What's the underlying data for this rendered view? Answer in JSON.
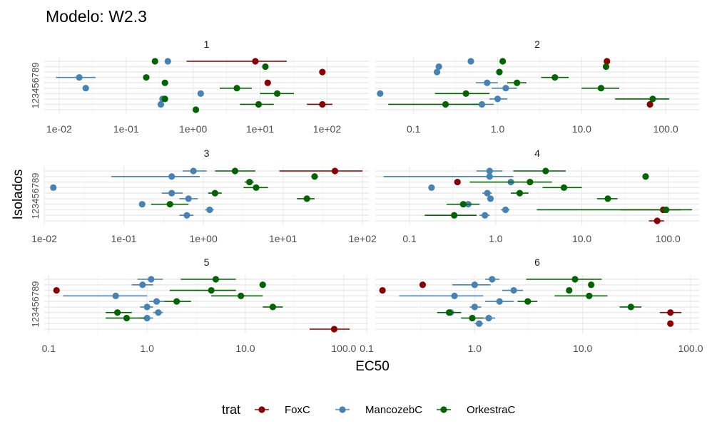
{
  "title": "Modelo: W2.3",
  "chart_data": {
    "type": "scatter",
    "title": "Modelo: W2.3",
    "xlabel": "EC50",
    "ylabel": "Isolados",
    "x_scale": "log10",
    "y_categories": [
      "1",
      "2",
      "3",
      "4",
      "5",
      "6",
      "7",
      "8",
      "9"
    ],
    "y_tick_label": "123456789",
    "grid": true,
    "legend": {
      "title": "trat",
      "position": "bottom",
      "entries": [
        {
          "name": "FoxС",
          "color": "#8B0000"
        },
        {
          "name": "MancozebС",
          "color": "#4682B4"
        },
        {
          "name": "OrkestraС",
          "color": "#006400"
        }
      ]
    },
    "facets": [
      {
        "label": "1",
        "xlim": [
          0.006,
          420
        ],
        "xticks": [
          {
            "v": 0.01,
            "t": "1e-02"
          },
          {
            "v": 0.1,
            "t": "1e-01"
          },
          {
            "v": 1,
            "t": "1e+00"
          },
          {
            "v": 10,
            "t": "1e+01"
          },
          {
            "v": 100,
            "t": "1e+02"
          }
        ],
        "points": [
          {
            "trat": 0,
            "iso": 9,
            "x": 8.5,
            "lo": 0.8,
            "hi": 25
          },
          {
            "trat": 0,
            "iso": 7,
            "x": 85,
            "lo": 85,
            "hi": 85
          },
          {
            "trat": 0,
            "iso": 5,
            "x": 13,
            "lo": 13,
            "hi": 13
          },
          {
            "trat": 0,
            "iso": 1,
            "x": 85,
            "lo": 50,
            "hi": 120
          },
          {
            "trat": 1,
            "iso": 9,
            "x": 0.42,
            "lo": 0.42,
            "hi": 0.42
          },
          {
            "trat": 1,
            "iso": 6,
            "x": 0.02,
            "lo": 0.009,
            "hi": 0.035
          },
          {
            "trat": 1,
            "iso": 4,
            "x": 0.025,
            "lo": 0.025,
            "hi": 0.025
          },
          {
            "trat": 1,
            "iso": 3,
            "x": 1.3,
            "lo": 1.3,
            "hi": 1.3
          },
          {
            "trat": 1,
            "iso": 2,
            "x": 0.35,
            "lo": 0.35,
            "hi": 0.35
          },
          {
            "trat": 1,
            "iso": 1,
            "x": 0.33,
            "lo": 0.33,
            "hi": 0.33
          },
          {
            "trat": 2,
            "iso": 9,
            "x": 0.27,
            "lo": 0.27,
            "hi": 0.27
          },
          {
            "trat": 2,
            "iso": 8,
            "x": 12,
            "lo": 12,
            "hi": 12
          },
          {
            "trat": 2,
            "iso": 6,
            "x": 0.2,
            "lo": 0.2,
            "hi": 0.2
          },
          {
            "trat": 2,
            "iso": 5,
            "x": 0.38,
            "lo": 0.38,
            "hi": 0.38
          },
          {
            "trat": 2,
            "iso": 4,
            "x": 4.5,
            "lo": 2.5,
            "hi": 7.5
          },
          {
            "trat": 2,
            "iso": 3,
            "x": 18,
            "lo": 10,
            "hi": 32
          },
          {
            "trat": 2,
            "iso": 2,
            "x": 0.38,
            "lo": 0.38,
            "hi": 0.38
          },
          {
            "trat": 2,
            "iso": 1,
            "x": 9.5,
            "lo": 5,
            "hi": 16
          },
          {
            "trat": 2,
            "iso": 0,
            "x": 1.1,
            "lo": 1.1,
            "hi": 1.1
          }
        ]
      },
      {
        "label": "2",
        "xlim": [
          0.035,
          250
        ],
        "xticks": [
          {
            "v": 0.1,
            "t": "0.1"
          },
          {
            "v": 1,
            "t": "1.0"
          },
          {
            "v": 10,
            "t": "10.0"
          },
          {
            "v": 100,
            "t": "100.0"
          }
        ],
        "points": [
          {
            "trat": 0,
            "iso": 9,
            "x": 20,
            "lo": 20,
            "hi": 20
          },
          {
            "trat": 0,
            "iso": 1,
            "x": 65,
            "lo": 65,
            "hi": 65
          },
          {
            "trat": 1,
            "iso": 9,
            "x": 0.48,
            "lo": 0.48,
            "hi": 0.48
          },
          {
            "trat": 1,
            "iso": 8,
            "x": 0.2,
            "lo": 0.2,
            "hi": 0.2
          },
          {
            "trat": 1,
            "iso": 7,
            "x": 0.19,
            "lo": 0.19,
            "hi": 0.19
          },
          {
            "trat": 1,
            "iso": 5,
            "x": 0.75,
            "lo": 0.55,
            "hi": 1.0
          },
          {
            "trat": 1,
            "iso": 4,
            "x": 1.25,
            "lo": 0.85,
            "hi": 1.7
          },
          {
            "trat": 1,
            "iso": 3,
            "x": 0.04,
            "lo": 0.04,
            "hi": 0.04
          },
          {
            "trat": 1,
            "iso": 2,
            "x": 1.0,
            "lo": 0.8,
            "hi": 1.3
          },
          {
            "trat": 1,
            "iso": 1,
            "x": 0.65,
            "lo": 0.5,
            "hi": 0.9
          },
          {
            "trat": 2,
            "iso": 9,
            "x": 1.15,
            "lo": 1.15,
            "hi": 1.15
          },
          {
            "trat": 2,
            "iso": 8,
            "x": 19.5,
            "lo": 19.5,
            "hi": 19.5
          },
          {
            "trat": 2,
            "iso": 7,
            "x": 1.05,
            "lo": 1.05,
            "hi": 1.05
          },
          {
            "trat": 2,
            "iso": 6,
            "x": 4.8,
            "lo": 3.3,
            "hi": 7
          },
          {
            "trat": 2,
            "iso": 5,
            "x": 1.7,
            "lo": 1.3,
            "hi": 2.2
          },
          {
            "trat": 2,
            "iso": 4,
            "x": 17,
            "lo": 10,
            "hi": 28
          },
          {
            "trat": 2,
            "iso": 3,
            "x": 0.42,
            "lo": 0.18,
            "hi": 0.8
          },
          {
            "trat": 2,
            "iso": 2,
            "x": 70,
            "lo": 25,
            "hi": 110
          },
          {
            "trat": 2,
            "iso": 1,
            "x": 0.24,
            "lo": 0.05,
            "hi": 0.6
          }
        ]
      },
      {
        "label": "3",
        "xlim": [
          0.01,
          120
        ],
        "xticks": [
          {
            "v": 0.01,
            "t": "1e-02"
          },
          {
            "v": 0.1,
            "t": "1e-01"
          },
          {
            "v": 1,
            "t": "1e+00"
          },
          {
            "v": 10,
            "t": "1e+01"
          },
          {
            "v": 100,
            "t": "1e+02"
          }
        ],
        "points": [
          {
            "trat": 0,
            "iso": 9,
            "x": 45,
            "lo": 9,
            "hi": 100
          },
          {
            "trat": 1,
            "iso": 9,
            "x": 0.75,
            "lo": 0.55,
            "hi": 1.1
          },
          {
            "trat": 1,
            "iso": 8,
            "x": 0.4,
            "lo": 0.07,
            "hi": 0.9
          },
          {
            "trat": 1,
            "iso": 6,
            "x": 0.013,
            "lo": 0.013,
            "hi": 0.013
          },
          {
            "trat": 1,
            "iso": 5,
            "x": 0.4,
            "lo": 0.3,
            "hi": 0.55
          },
          {
            "trat": 1,
            "iso": 4,
            "x": 0.65,
            "lo": 0.5,
            "hi": 0.85
          },
          {
            "trat": 1,
            "iso": 3,
            "x": 0.17,
            "lo": 0.17,
            "hi": 0.17
          },
          {
            "trat": 1,
            "iso": 2,
            "x": 1.2,
            "lo": 1.05,
            "hi": 1.35
          },
          {
            "trat": 1,
            "iso": 1,
            "x": 0.62,
            "lo": 0.5,
            "hi": 0.75
          },
          {
            "trat": 2,
            "iso": 9,
            "x": 2.5,
            "lo": 1.4,
            "hi": 4.5
          },
          {
            "trat": 2,
            "iso": 8,
            "x": 25,
            "lo": 25,
            "hi": 25
          },
          {
            "trat": 2,
            "iso": 7,
            "x": 3.8,
            "lo": 3.3,
            "hi": 4.3
          },
          {
            "trat": 2,
            "iso": 6,
            "x": 4.6,
            "lo": 3.2,
            "hi": 6.5
          },
          {
            "trat": 2,
            "iso": 5,
            "x": 1.4,
            "lo": 1.15,
            "hi": 1.7
          },
          {
            "trat": 2,
            "iso": 4,
            "x": 20,
            "lo": 15,
            "hi": 25
          },
          {
            "trat": 2,
            "iso": 3,
            "x": 0.38,
            "lo": 0.22,
            "hi": 0.65
          }
        ]
      },
      {
        "label": "4",
        "xlim": [
          0.04,
          230
        ],
        "xticks": [
          {
            "v": 0.1,
            "t": "0.1"
          },
          {
            "v": 1,
            "t": "1.0"
          },
          {
            "v": 10,
            "t": "10.0"
          },
          {
            "v": 100,
            "t": "100.0"
          }
        ],
        "points": [
          {
            "trat": 0,
            "iso": 7,
            "x": 0.36,
            "lo": 0.36,
            "hi": 0.36
          },
          {
            "trat": 0,
            "iso": 2,
            "x": 88,
            "lo": 28,
            "hi": 140
          },
          {
            "trat": 0,
            "iso": 0,
            "x": 75,
            "lo": 60,
            "hi": 90
          },
          {
            "trat": 1,
            "iso": 9,
            "x": 0.85,
            "lo": 0.6,
            "hi": 1.2
          },
          {
            "trat": 1,
            "iso": 8,
            "x": 0.85,
            "lo": 0.05,
            "hi": 1.6
          },
          {
            "trat": 1,
            "iso": 7,
            "x": 1.5,
            "lo": 1.5,
            "hi": 1.5
          },
          {
            "trat": 1,
            "iso": 6,
            "x": 0.18,
            "lo": 0.18,
            "hi": 0.18
          },
          {
            "trat": 1,
            "iso": 5,
            "x": 0.8,
            "lo": 0.7,
            "hi": 0.9
          },
          {
            "trat": 1,
            "iso": 4,
            "x": 0.87,
            "lo": 0.8,
            "hi": 0.95
          },
          {
            "trat": 1,
            "iso": 3,
            "x": 0.48,
            "lo": 0.35,
            "hi": 0.65
          },
          {
            "trat": 1,
            "iso": 2,
            "x": 1.3,
            "lo": 1.15,
            "hi": 1.45
          },
          {
            "trat": 1,
            "iso": 1,
            "x": 0.75,
            "lo": 0.65,
            "hi": 0.85
          },
          {
            "trat": 2,
            "iso": 9,
            "x": 3.8,
            "lo": 1.6,
            "hi": 6.5
          },
          {
            "trat": 2,
            "iso": 8,
            "x": 55,
            "lo": 55,
            "hi": 55
          },
          {
            "trat": 2,
            "iso": 7,
            "x": 2.5,
            "lo": 0.5,
            "hi": 4.5
          },
          {
            "trat": 2,
            "iso": 6,
            "x": 6.2,
            "lo": 3.5,
            "hi": 10
          },
          {
            "trat": 2,
            "iso": 5,
            "x": 1.9,
            "lo": 1.5,
            "hi": 2.4
          },
          {
            "trat": 2,
            "iso": 4,
            "x": 20,
            "lo": 15,
            "hi": 26
          },
          {
            "trat": 2,
            "iso": 3,
            "x": 0.42,
            "lo": 0.27,
            "hi": 0.65
          },
          {
            "trat": 2,
            "iso": 2,
            "x": 95,
            "lo": 3,
            "hi": 190
          },
          {
            "trat": 2,
            "iso": 1,
            "x": 0.33,
            "lo": 0.15,
            "hi": 0.6
          }
        ]
      },
      {
        "label": "5",
        "xlim": [
          0.09,
          180
        ],
        "xticks": [
          {
            "v": 0.1,
            "t": "0.1"
          },
          {
            "v": 1,
            "t": "1.0"
          },
          {
            "v": 10,
            "t": "10.0"
          },
          {
            "v": 100,
            "t": "100.0"
          }
        ],
        "points": [
          {
            "trat": 0,
            "iso": 7,
            "x": 0.12,
            "lo": 0.12,
            "hi": 0.12
          },
          {
            "trat": 0,
            "iso": 0,
            "x": 80,
            "lo": 45,
            "hi": 115
          },
          {
            "trat": 1,
            "iso": 9,
            "x": 1.1,
            "lo": 0.8,
            "hi": 1.45
          },
          {
            "trat": 1,
            "iso": 8,
            "x": 0.9,
            "lo": 0.7,
            "hi": 1.15
          },
          {
            "trat": 1,
            "iso": 6,
            "x": 0.48,
            "lo": 0.14,
            "hi": 1.0
          },
          {
            "trat": 1,
            "iso": 5,
            "x": 1.25,
            "lo": 1.05,
            "hi": 1.5
          },
          {
            "trat": 1,
            "iso": 4,
            "x": 1.0,
            "lo": 0.85,
            "hi": 1.15
          },
          {
            "trat": 1,
            "iso": 3,
            "x": 1.3,
            "lo": 1.15,
            "hi": 1.45
          },
          {
            "trat": 1,
            "iso": 2,
            "x": 1.0,
            "lo": 0.85,
            "hi": 1.15
          },
          {
            "trat": 2,
            "iso": 9,
            "x": 5,
            "lo": 2.2,
            "hi": 8
          },
          {
            "trat": 2,
            "iso": 8,
            "x": 15,
            "lo": 15,
            "hi": 15
          },
          {
            "trat": 2,
            "iso": 7,
            "x": 4.5,
            "lo": 1.7,
            "hi": 8
          },
          {
            "trat": 2,
            "iso": 6,
            "x": 9,
            "lo": 4.5,
            "hi": 15
          },
          {
            "trat": 2,
            "iso": 5,
            "x": 2,
            "lo": 1.5,
            "hi": 2.8
          },
          {
            "trat": 2,
            "iso": 4,
            "x": 19,
            "lo": 15,
            "hi": 24
          },
          {
            "trat": 2,
            "iso": 3,
            "x": 0.5,
            "lo": 0.38,
            "hi": 0.7
          },
          {
            "trat": 2,
            "iso": 2,
            "x": 0.62,
            "lo": 0.38,
            "hi": 0.95
          }
        ]
      },
      {
        "label": "6",
        "xlim": [
          0.12,
          120
        ],
        "xticks": [
          {
            "v": 0.1,
            "t": "0.1"
          },
          {
            "v": 1,
            "t": "1.0"
          },
          {
            "v": 10,
            "t": "10.0"
          },
          {
            "v": 100,
            "t": "100.0"
          }
        ],
        "points": [
          {
            "trat": 0,
            "iso": 8,
            "x": 0.33,
            "lo": 0.33,
            "hi": 0.33
          },
          {
            "trat": 0,
            "iso": 7,
            "x": 0.14,
            "lo": 0.14,
            "hi": 0.14
          },
          {
            "trat": 0,
            "iso": 3,
            "x": 65,
            "lo": 52,
            "hi": 82
          },
          {
            "trat": 0,
            "iso": 1,
            "x": 65,
            "lo": 65,
            "hi": 65
          },
          {
            "trat": 1,
            "iso": 9,
            "x": 1.45,
            "lo": 1.25,
            "hi": 1.7
          },
          {
            "trat": 1,
            "iso": 8,
            "x": 1.0,
            "lo": 0.62,
            "hi": 1.4
          },
          {
            "trat": 1,
            "iso": 7,
            "x": 2.3,
            "lo": 1.8,
            "hi": 2.8
          },
          {
            "trat": 1,
            "iso": 6,
            "x": 0.65,
            "lo": 0.2,
            "hi": 1.2
          },
          {
            "trat": 1,
            "iso": 5,
            "x": 1.7,
            "lo": 1.25,
            "hi": 2.3
          },
          {
            "trat": 1,
            "iso": 4,
            "x": 1.0,
            "lo": 0.9,
            "hi": 1.15
          },
          {
            "trat": 1,
            "iso": 3,
            "x": 0.6,
            "lo": 0.55,
            "hi": 0.68
          },
          {
            "trat": 1,
            "iso": 2,
            "x": 1.35,
            "lo": 1.2,
            "hi": 1.55
          },
          {
            "trat": 1,
            "iso": 1,
            "x": 1.1,
            "lo": 1.0,
            "hi": 1.2
          },
          {
            "trat": 2,
            "iso": 9,
            "x": 8.5,
            "lo": 3,
            "hi": 15
          },
          {
            "trat": 2,
            "iso": 8,
            "x": 12,
            "lo": 12,
            "hi": 12
          },
          {
            "trat": 2,
            "iso": 7,
            "x": 7.5,
            "lo": 7.5,
            "hi": 7.5
          },
          {
            "trat": 2,
            "iso": 6,
            "x": 11.5,
            "lo": 5.5,
            "hi": 17
          },
          {
            "trat": 2,
            "iso": 5,
            "x": 3.1,
            "lo": 2.5,
            "hi": 3.8
          },
          {
            "trat": 2,
            "iso": 4,
            "x": 28,
            "lo": 22,
            "hi": 35
          },
          {
            "trat": 2,
            "iso": 3,
            "x": 0.58,
            "lo": 0.45,
            "hi": 0.75
          },
          {
            "trat": 2,
            "iso": 2,
            "x": 0.95,
            "lo": 0.75,
            "hi": 1.2
          }
        ]
      }
    ]
  }
}
